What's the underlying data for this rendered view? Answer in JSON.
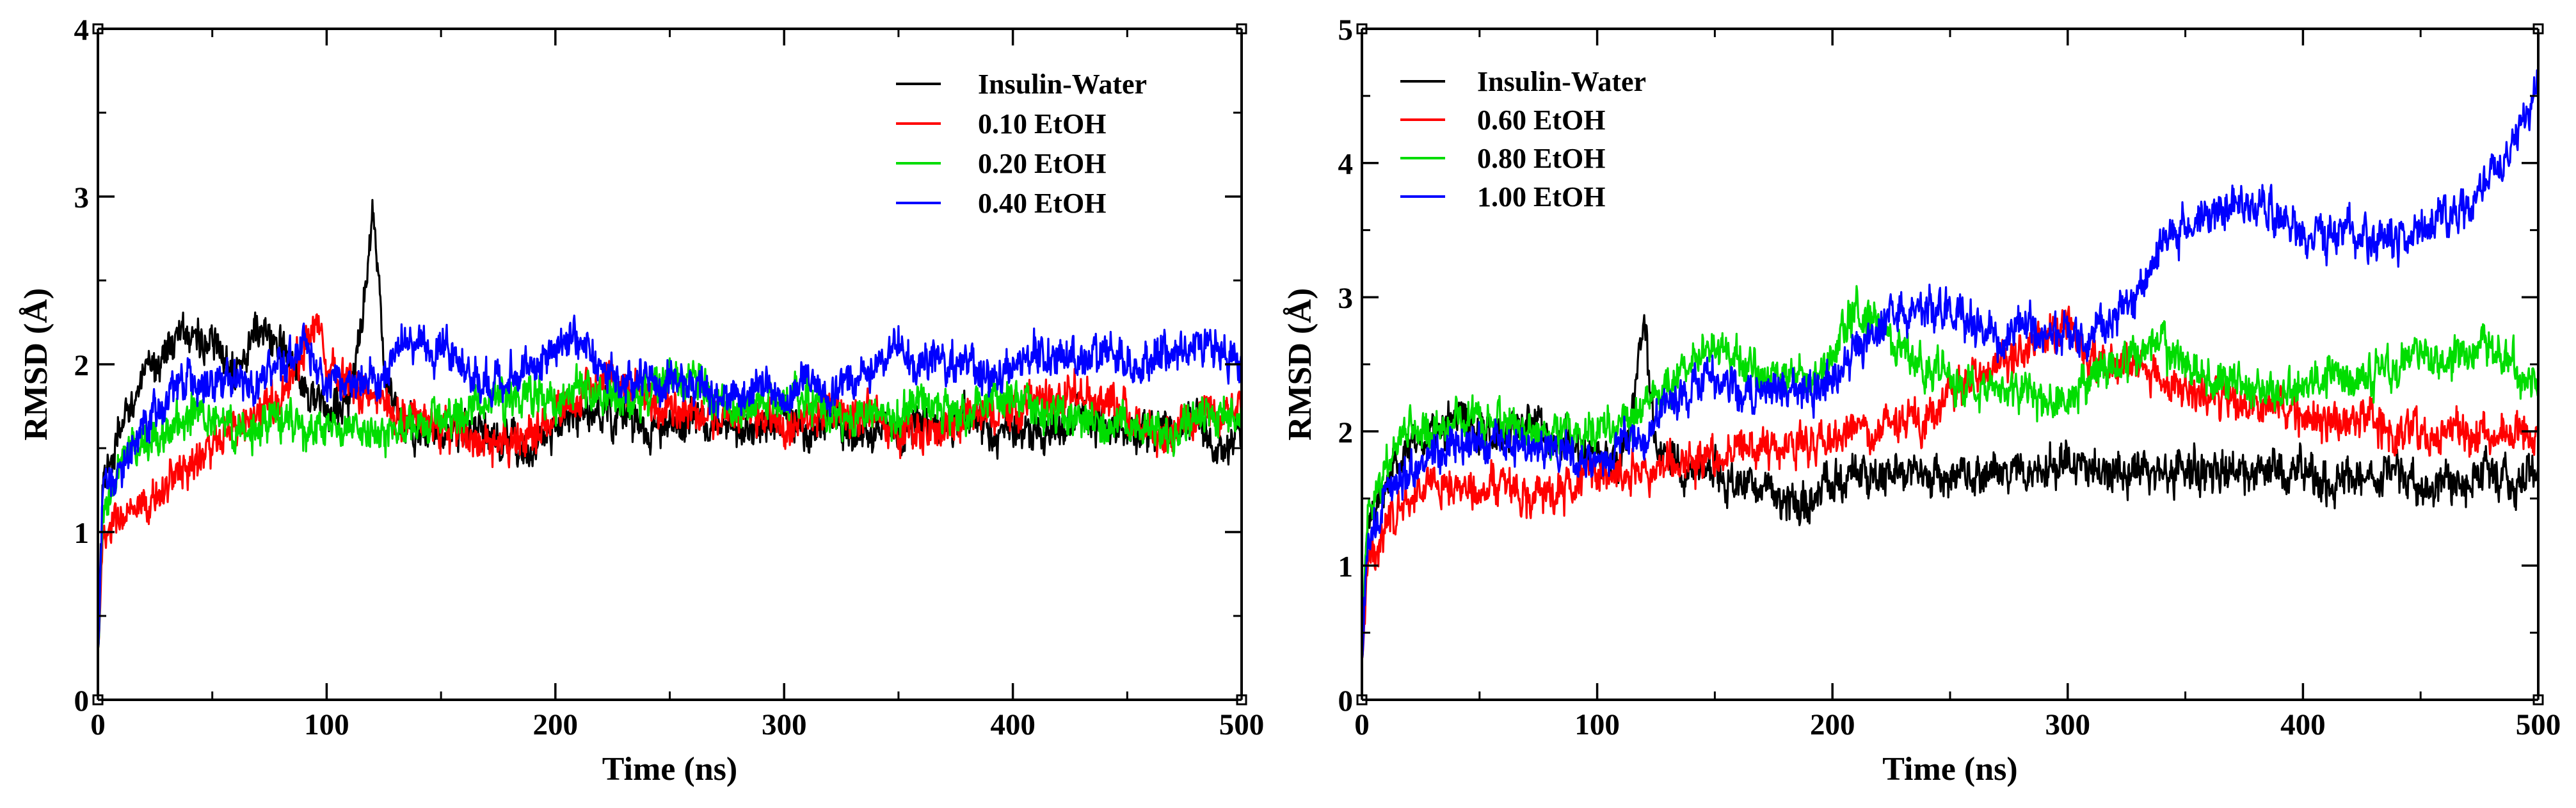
{
  "chart_data": [
    {
      "type": "line",
      "panel": "left",
      "title": "",
      "xlabel": "Time (ns)",
      "ylabel": "RMSD (Å)",
      "xlim": [
        0,
        500
      ],
      "ylim": [
        0,
        4
      ],
      "xticks": [
        0,
        100,
        200,
        300,
        400,
        500
      ],
      "yticks": [
        0,
        1,
        2,
        3,
        4
      ],
      "x_tick_labels": [
        "0",
        "100",
        "200",
        "300",
        "400",
        "500"
      ],
      "y_tick_labels": [
        "0",
        "1",
        "2",
        "3",
        "4"
      ],
      "legend_position": "top-right",
      "x": [
        0,
        2,
        5,
        10,
        15,
        20,
        25,
        30,
        40,
        50,
        60,
        70,
        80,
        90,
        95,
        100,
        110,
        115,
        118,
        120,
        122,
        125,
        130,
        140,
        150,
        160,
        170,
        175,
        180,
        190,
        200,
        210,
        220,
        230,
        240,
        250,
        260,
        270,
        280,
        290,
        300,
        310,
        320,
        330,
        340,
        350,
        360,
        370,
        380,
        390,
        400,
        410,
        420,
        430,
        440,
        450,
        460,
        470,
        480,
        490,
        500
      ],
      "series": [
        {
          "name": "Insulin-Water",
          "color": "#000000",
          "values": [
            0.3,
            1.2,
            1.4,
            1.6,
            1.8,
            1.9,
            2.0,
            2.1,
            2.2,
            2.1,
            2.0,
            2.2,
            2.1,
            1.9,
            1.8,
            1.7,
            1.8,
            2.2,
            2.6,
            2.9,
            2.6,
            2.0,
            1.7,
            1.6,
            1.6,
            1.6,
            1.6,
            1.5,
            1.5,
            1.5,
            1.6,
            1.7,
            1.7,
            1.7,
            1.6,
            1.6,
            1.7,
            1.6,
            1.6,
            1.6,
            1.7,
            1.6,
            1.7,
            1.6,
            1.6,
            1.6,
            1.7,
            1.6,
            1.7,
            1.6,
            1.6,
            1.6,
            1.6,
            1.7,
            1.6,
            1.6,
            1.6,
            1.6,
            1.7,
            1.5,
            1.6
          ]
        },
        {
          "name": "0.10 EtOH",
          "color": "#ff0000",
          "values": [
            0.3,
            0.9,
            1.0,
            1.1,
            1.1,
            1.1,
            1.2,
            1.3,
            1.4,
            1.5,
            1.6,
            1.7,
            1.8,
            2.1,
            2.3,
            2.0,
            1.9,
            1.8,
            1.8,
            1.8,
            1.8,
            1.8,
            1.7,
            1.7,
            1.6,
            1.6,
            1.5,
            1.5,
            1.5,
            1.6,
            1.7,
            1.8,
            1.9,
            1.9,
            1.8,
            1.7,
            1.7,
            1.7,
            1.7,
            1.7,
            1.6,
            1.7,
            1.7,
            1.7,
            1.7,
            1.6,
            1.6,
            1.6,
            1.7,
            1.7,
            1.7,
            1.8,
            1.8,
            1.8,
            1.8,
            1.7,
            1.6,
            1.6,
            1.7,
            1.7,
            1.7
          ]
        },
        {
          "name": "0.20 EtOH",
          "color": "#00dd00",
          "values": [
            0.3,
            1.0,
            1.2,
            1.4,
            1.5,
            1.5,
            1.6,
            1.6,
            1.7,
            1.7,
            1.6,
            1.6,
            1.7,
            1.6,
            1.6,
            1.6,
            1.6,
            1.6,
            1.6,
            1.6,
            1.6,
            1.6,
            1.6,
            1.6,
            1.7,
            1.7,
            1.8,
            1.8,
            1.8,
            1.8,
            1.8,
            1.9,
            1.8,
            1.8,
            1.8,
            1.9,
            1.9,
            1.8,
            1.7,
            1.8,
            1.8,
            1.8,
            1.7,
            1.7,
            1.7,
            1.7,
            1.8,
            1.7,
            1.7,
            1.8,
            1.8,
            1.7,
            1.7,
            1.7,
            1.6,
            1.6,
            1.6,
            1.6,
            1.7,
            1.7,
            1.7
          ]
        },
        {
          "name": "0.40 EtOH",
          "color": "#0000ff",
          "values": [
            0.3,
            1.2,
            1.3,
            1.4,
            1.5,
            1.6,
            1.7,
            1.8,
            1.9,
            1.9,
            1.9,
            1.9,
            2.0,
            2.1,
            2.0,
            1.9,
            1.9,
            1.9,
            1.9,
            1.9,
            1.9,
            2.0,
            2.1,
            2.1,
            2.1,
            2.0,
            1.9,
            1.9,
            1.9,
            2.0,
            2.1,
            2.2,
            2.0,
            1.9,
            1.9,
            1.9,
            1.9,
            1.8,
            1.8,
            1.9,
            1.8,
            1.9,
            1.8,
            1.9,
            2.0,
            2.1,
            2.0,
            2.0,
            2.0,
            1.9,
            2.0,
            2.1,
            2.0,
            2.0,
            2.1,
            2.0,
            2.0,
            2.1,
            2.1,
            2.1,
            2.0
          ]
        }
      ]
    },
    {
      "type": "line",
      "panel": "right",
      "title": "",
      "xlabel": "Time (ns)",
      "ylabel": "RMSD (Å)",
      "xlim": [
        0,
        500
      ],
      "ylim": [
        0,
        5
      ],
      "xticks": [
        0,
        100,
        200,
        300,
        400,
        500
      ],
      "yticks": [
        0,
        1,
        2,
        3,
        4,
        5
      ],
      "x_tick_labels": [
        "0",
        "100",
        "200",
        "300",
        "400",
        "500"
      ],
      "y_tick_labels": [
        "0",
        "1",
        "2",
        "3",
        "4",
        "5"
      ],
      "legend_position": "top-left",
      "x": [
        0,
        2,
        5,
        10,
        15,
        20,
        25,
        30,
        40,
        50,
        60,
        70,
        80,
        90,
        100,
        110,
        115,
        118,
        120,
        122,
        125,
        130,
        140,
        150,
        160,
        170,
        180,
        190,
        200,
        205,
        210,
        220,
        230,
        240,
        250,
        260,
        270,
        280,
        290,
        300,
        310,
        320,
        330,
        340,
        350,
        360,
        370,
        380,
        390,
        400,
        410,
        420,
        430,
        440,
        450,
        460,
        470,
        480,
        490,
        500
      ],
      "series": [
        {
          "name": "Insulin-Water",
          "color": "#000000",
          "values": [
            0.3,
            1.2,
            1.4,
            1.6,
            1.8,
            1.9,
            1.9,
            2.0,
            2.1,
            2.0,
            2.0,
            2.1,
            2.0,
            1.9,
            1.8,
            1.8,
            2.2,
            2.6,
            2.8,
            2.4,
            2.0,
            1.8,
            1.7,
            1.7,
            1.6,
            1.6,
            1.5,
            1.5,
            1.6,
            1.6,
            1.7,
            1.7,
            1.7,
            1.7,
            1.7,
            1.7,
            1.7,
            1.7,
            1.7,
            1.8,
            1.7,
            1.7,
            1.7,
            1.7,
            1.7,
            1.7,
            1.7,
            1.7,
            1.7,
            1.7,
            1.6,
            1.6,
            1.6,
            1.7,
            1.6,
            1.6,
            1.6,
            1.7,
            1.6,
            1.7
          ]
        },
        {
          "name": "0.60 EtOH",
          "color": "#ff0000",
          "values": [
            0.3,
            0.9,
            1.1,
            1.3,
            1.4,
            1.5,
            1.6,
            1.6,
            1.6,
            1.6,
            1.6,
            1.5,
            1.5,
            1.6,
            1.7,
            1.7,
            1.7,
            1.7,
            1.7,
            1.7,
            1.7,
            1.8,
            1.8,
            1.8,
            1.9,
            1.9,
            1.9,
            1.9,
            1.9,
            2.0,
            2.0,
            2.0,
            2.1,
            2.1,
            2.3,
            2.4,
            2.5,
            2.6,
            2.7,
            2.8,
            2.5,
            2.5,
            2.5,
            2.4,
            2.3,
            2.3,
            2.2,
            2.2,
            2.2,
            2.1,
            2.1,
            2.1,
            2.1,
            2.0,
            2.0,
            2.0,
            2.0,
            2.0,
            2.0,
            2.0
          ]
        },
        {
          "name": "0.80 EtOH",
          "color": "#00dd00",
          "values": [
            0.3,
            1.3,
            1.5,
            1.7,
            1.9,
            2.0,
            2.0,
            2.0,
            2.1,
            2.1,
            2.1,
            2.0,
            2.0,
            2.0,
            2.0,
            2.1,
            2.1,
            2.2,
            2.2,
            2.2,
            2.3,
            2.3,
            2.5,
            2.6,
            2.6,
            2.4,
            2.4,
            2.4,
            2.5,
            2.8,
            2.9,
            2.8,
            2.6,
            2.5,
            2.4,
            2.3,
            2.3,
            2.3,
            2.2,
            2.3,
            2.4,
            2.5,
            2.6,
            2.6,
            2.5,
            2.4,
            2.4,
            2.3,
            2.3,
            2.3,
            2.4,
            2.4,
            2.4,
            2.5,
            2.6,
            2.5,
            2.6,
            2.6,
            2.5,
            2.3
          ]
        },
        {
          "name": "1.00 EtOH",
          "color": "#0000ff",
          "values": [
            0.3,
            1.1,
            1.3,
            1.5,
            1.6,
            1.7,
            1.7,
            1.8,
            1.9,
            1.9,
            1.9,
            1.9,
            1.9,
            1.8,
            1.8,
            1.9,
            1.9,
            2.0,
            2.0,
            2.0,
            2.1,
            2.2,
            2.3,
            2.4,
            2.3,
            2.3,
            2.3,
            2.3,
            2.4,
            2.5,
            2.6,
            2.8,
            2.9,
            2.9,
            2.9,
            2.8,
            2.7,
            2.8,
            2.7,
            2.7,
            2.7,
            2.8,
            3.0,
            3.4,
            3.5,
            3.6,
            3.7,
            3.7,
            3.6,
            3.5,
            3.4,
            3.5,
            3.4,
            3.4,
            3.5,
            3.6,
            3.7,
            3.9,
            4.1,
            4.6
          ]
        }
      ]
    }
  ]
}
